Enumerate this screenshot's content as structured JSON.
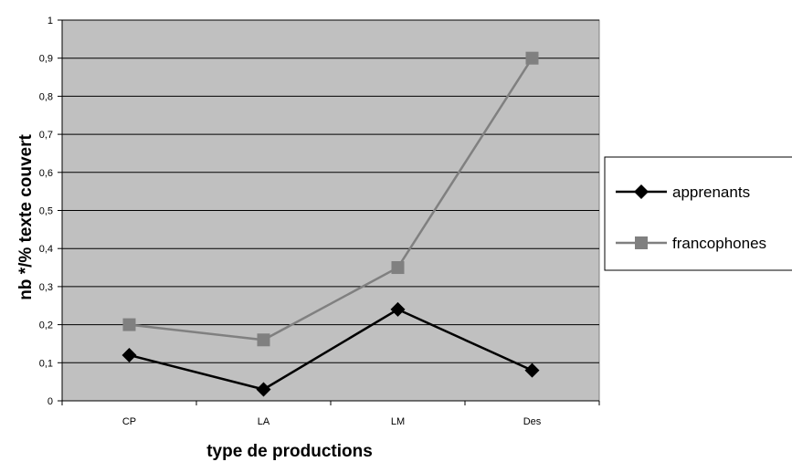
{
  "chart_data": {
    "type": "line",
    "title": "",
    "xlabel": "type de productions",
    "ylabel": "nb */% texte couvert",
    "categories": [
      "CP",
      "LA",
      "LM",
      "Des"
    ],
    "ylim": [
      0,
      1
    ],
    "yticks": [
      "0",
      "0,1",
      "0,2",
      "0,3",
      "0,4",
      "0,5",
      "0,6",
      "0,7",
      "0,8",
      "0,9",
      "1"
    ],
    "grid": true,
    "legend_position": "right",
    "plot_background": "#c0c0c0",
    "series": [
      {
        "name": "apprenants",
        "values": [
          0.12,
          0.03,
          0.24,
          0.08
        ],
        "color": "#000000",
        "marker": "diamond"
      },
      {
        "name": "francophones",
        "values": [
          0.2,
          0.16,
          0.35,
          0.9
        ],
        "color": "#808080",
        "marker": "square"
      }
    ]
  }
}
